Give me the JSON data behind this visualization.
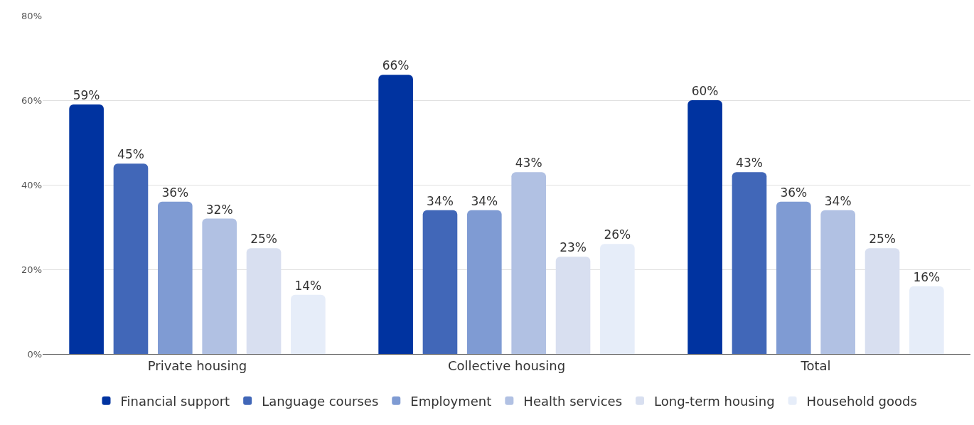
{
  "chart_data": {
    "type": "bar",
    "categories": [
      "Private housing",
      "Collective housing",
      "Total"
    ],
    "series": [
      {
        "name": "Financial support",
        "color": "#0033a0",
        "values": [
          59,
          66,
          60
        ],
        "value_labels": [
          "59%",
          "66%",
          "60%"
        ]
      },
      {
        "name": "Language courses",
        "color": "#4167b8",
        "values": [
          45,
          34,
          43
        ],
        "value_labels": [
          "45%",
          "34%",
          "43%"
        ]
      },
      {
        "name": "Employment",
        "color": "#7f9bd3",
        "values": [
          36,
          34,
          36
        ],
        "value_labels": [
          "36%",
          "34%",
          "36%"
        ]
      },
      {
        "name": "Health services",
        "color": "#b1c1e3",
        "values": [
          32,
          43,
          34
        ],
        "value_labels": [
          "32%",
          "43%",
          "34%"
        ]
      },
      {
        "name": "Long-term housing",
        "color": "#d8dff0",
        "values": [
          25,
          23,
          25
        ],
        "value_labels": [
          "25%",
          "23%",
          "25%"
        ]
      },
      {
        "name": "Household goods",
        "color": "#e6edf9",
        "values": [
          14,
          26,
          16
        ],
        "value_labels": [
          "14%",
          "26%",
          "16%"
        ]
      }
    ],
    "ylim": [
      0,
      80
    ],
    "yticks": [
      {
        "value": 0,
        "label": "0%"
      },
      {
        "value": 20,
        "label": "20%"
      },
      {
        "value": 40,
        "label": "40%"
      },
      {
        "value": 60,
        "label": "60%"
      },
      {
        "value": 80,
        "label": "80%"
      }
    ],
    "grid": "y",
    "legend": "bottom"
  }
}
